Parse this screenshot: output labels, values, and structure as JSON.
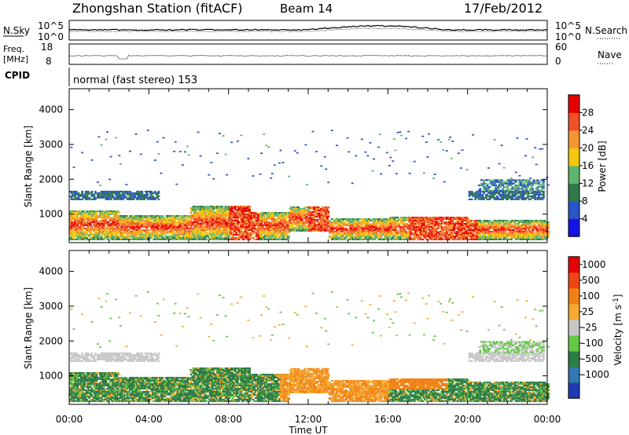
{
  "header": {
    "title": "Zhongshan Station (fitACF)",
    "beam": "Beam 14",
    "date": "17/Feb/2012"
  },
  "noise_panel": {
    "left_label": "N.Sky",
    "right_label": "N.Search",
    "tick_top": "10^5",
    "tick_bottom": "10^0",
    "right_tick_top": "10^5",
    "right_tick_bottom": "10^0"
  },
  "freq_panel": {
    "left_label_1": "Freq.",
    "left_label_2": "[MHz]",
    "right_label": "Nave",
    "left_tick_top": "18",
    "left_tick_bottom": "8",
    "right_tick_top": "60",
    "right_tick_bottom": "0"
  },
  "cpid": {
    "label": "CPID",
    "text": "normal (fast stereo) 153"
  },
  "chart_data": [
    {
      "type": "heatmap",
      "parameter": "power",
      "ylabel": "Slant Range [km]",
      "ylim": [
        180,
        4600
      ],
      "yticks": [
        "1000",
        "2000",
        "3000",
        "4000"
      ],
      "yticks_values": [
        1000,
        2000,
        3000,
        4000
      ],
      "xlim": [
        0,
        24
      ],
      "xticks": [
        "00:00",
        "04:00",
        "08:00",
        "12:00",
        "16:00",
        "20:00",
        "00:00"
      ],
      "colorbar": {
        "label": "Power [dB]",
        "ticks": [
          "4",
          "8",
          "12",
          "16",
          "20",
          "24",
          "28"
        ],
        "colors": [
          "#1414e6",
          "#2a55c8",
          "#2f7a4a",
          "#5fb46e",
          "#f5c80f",
          "#f59632",
          "#f05028",
          "#e60000"
        ]
      }
    },
    {
      "type": "heatmap",
      "parameter": "velocity",
      "ylabel": "Slant Range [km]",
      "ylim": [
        180,
        4600
      ],
      "yticks": [
        "1000",
        "2000",
        "3000",
        "4000"
      ],
      "yticks_values": [
        1000,
        2000,
        3000,
        4000
      ],
      "xlim": [
        0,
        24
      ],
      "xticks": [
        "00:00",
        "04:00",
        "08:00",
        "12:00",
        "16:00",
        "20:00",
        "00:00"
      ],
      "xlabel": "Time UT",
      "colorbar": {
        "label": "Velocity [m s^-1]",
        "ticks": [
          "1000",
          "500",
          "100",
          "25",
          "-25",
          "-100",
          "-500",
          "-1000"
        ],
        "colors": [
          "#1e3cb4",
          "#3278b4",
          "#2d7d46",
          "#64c846",
          "#c8c8c8",
          "#f5aa32",
          "#f08214",
          "#f04614",
          "#e60000"
        ]
      }
    }
  ]
}
